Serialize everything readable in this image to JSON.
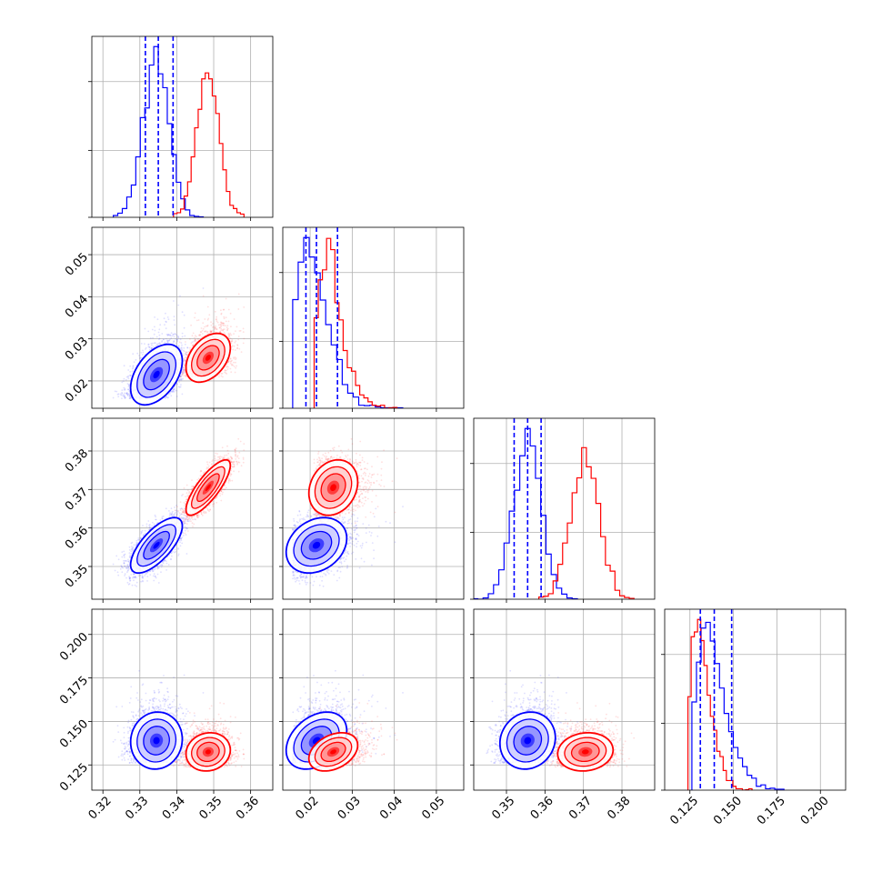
{
  "chart_data": {
    "type": "corner",
    "grid": true,
    "parameters": [
      {
        "range": [
          0.317,
          0.366
        ],
        "ticks": [
          0.32,
          0.33,
          0.34,
          0.35,
          0.36
        ],
        "tick_labels": [
          "0.32",
          "0.33",
          "0.34",
          "0.35",
          "0.36"
        ]
      },
      {
        "range": [
          0.0135,
          0.0565
        ],
        "ticks": [
          0.02,
          0.03,
          0.04,
          0.05
        ],
        "tick_labels": [
          "0.02",
          "0.03",
          "0.04",
          "0.05"
        ]
      },
      {
        "range": [
          0.3415,
          0.3885
        ],
        "ticks": [
          0.35,
          0.36,
          0.37,
          0.38
        ],
        "tick_labels": [
          "0.35",
          "0.36",
          "0.37",
          "0.38"
        ]
      },
      {
        "range": [
          0.1105,
          0.2145
        ],
        "ticks": [
          0.125,
          0.15,
          0.175,
          0.2
        ],
        "tick_labels": [
          "0.125",
          "0.150",
          "0.175",
          "0.200"
        ]
      }
    ],
    "series": [
      {
        "color": "#0000ff",
        "mean": [
          0.3345,
          0.0215,
          0.3555,
          0.139
        ],
        "sd": [
          0.0035,
          0.0036,
          0.0036,
          0.0082
        ],
        "corr": [
          [
            1,
            0.45,
            0.7,
            0.05
          ],
          [
            0.45,
            1,
            0.25,
            0.35
          ],
          [
            0.7,
            0.25,
            1,
            0.1
          ],
          [
            0.05,
            0.35,
            0.1,
            1
          ]
        ],
        "quantiles": [
          [
            0.3315,
            0.335,
            0.339
          ],
          [
            0.019,
            0.0215,
            0.0265
          ],
          [
            0.352,
            0.3555,
            0.359
          ],
          [
            0.131,
            0.139,
            0.149
          ]
        ]
      },
      {
        "color": "#ff0000",
        "mean": [
          0.3485,
          0.0255,
          0.3705,
          0.1325
        ],
        "sd": [
          0.003,
          0.0029,
          0.0036,
          0.0055
        ],
        "corr": [
          [
            1,
            0.4,
            0.8,
            0.1
          ],
          [
            0.4,
            1,
            0.2,
            0.35
          ],
          [
            0.8,
            0.2,
            1,
            0.1
          ],
          [
            0.1,
            0.35,
            0.1,
            1
          ]
        ]
      }
    ],
    "histogram_bins": 20,
    "contour_levels": [
      0.5,
      1.0,
      1.5,
      2.0
    ],
    "quantile_lines": "blue-dashed"
  }
}
